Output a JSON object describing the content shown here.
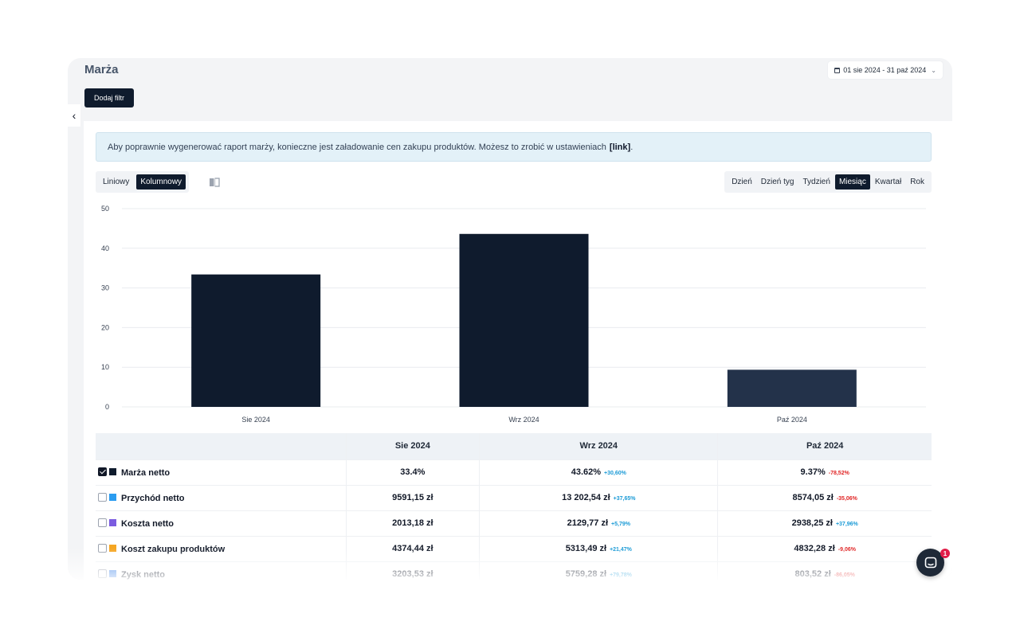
{
  "header": {
    "title": "Marża",
    "date_range": "01 sie 2024 - 31 paź 2024",
    "filter_button": "Dodaj filtr"
  },
  "notice": {
    "text": "Aby poprawnie wygenerować raport marży, konieczne jest załadowanie cen zakupu produktów. Możesz to zrobić w ustawieniach",
    "link": "[link]",
    "end": "."
  },
  "chart_toggle": [
    {
      "label": "Liniowy",
      "active": false
    },
    {
      "label": "Kolumnowy",
      "active": true
    }
  ],
  "period_toggle": [
    {
      "label": "Dzień",
      "active": false
    },
    {
      "label": "Dzień tyg",
      "active": false
    },
    {
      "label": "Tydzień",
      "active": false
    },
    {
      "label": "Miesiąc",
      "active": true
    },
    {
      "label": "Kwartał",
      "active": false
    },
    {
      "label": "Rok",
      "active": false
    }
  ],
  "chart_data": {
    "type": "bar",
    "categories": [
      "Sie 2024",
      "Wrz 2024",
      "Paź 2024"
    ],
    "values": [
      33.4,
      43.62,
      9.37
    ],
    "ylim": [
      0,
      50
    ],
    "yticks": [
      "0",
      "10",
      "20",
      "30",
      "40",
      "50"
    ],
    "grid": true,
    "colors": [
      "#0f1b2d",
      "#0f1b2d",
      "#23324a"
    ]
  },
  "table": {
    "columns": [
      "",
      "Sie 2024",
      "Wrz 2024",
      "Paź 2024"
    ],
    "rows": [
      {
        "name": "Marża netto",
        "checked": true,
        "color": "#0f1b2d",
        "cells": [
          {
            "value": "33.4%",
            "delta": ""
          },
          {
            "value": "43.62%",
            "delta": "+30,60%"
          },
          {
            "value": "9.37%",
            "delta": "-78,52%"
          }
        ]
      },
      {
        "name": "Przychód netto",
        "checked": false,
        "color": "#2b9cf0",
        "cells": [
          {
            "value": "9591,15 zł",
            "delta": ""
          },
          {
            "value": "13 202,54 zł",
            "delta": "+37,65%"
          },
          {
            "value": "8574,05 zł",
            "delta": "-35,06%"
          }
        ]
      },
      {
        "name": "Koszta netto",
        "checked": false,
        "color": "#7b5ce0",
        "cells": [
          {
            "value": "2013,18 zł",
            "delta": ""
          },
          {
            "value": "2129,77 zł",
            "delta": "+5,79%"
          },
          {
            "value": "2938,25 zł",
            "delta": "+37,96%"
          }
        ]
      },
      {
        "name": "Koszt zakupu produktów",
        "checked": false,
        "color": "#f5a623",
        "cells": [
          {
            "value": "4374,44 zł",
            "delta": ""
          },
          {
            "value": "5313,49 zł",
            "delta": "+21,47%"
          },
          {
            "value": "4832,28 zł",
            "delta": "-9,06%"
          }
        ]
      },
      {
        "name": "Zysk netto",
        "checked": false,
        "color": "#3b82e8",
        "cells": [
          {
            "value": "3203,53 zł",
            "delta": ""
          },
          {
            "value": "5759,28 zł",
            "delta": "+79,78%"
          },
          {
            "value": "803,52 zł",
            "delta": "-86,05%"
          }
        ]
      }
    ]
  },
  "colors": {
    "positive": "#1a9ad6",
    "negative": "#e02424",
    "primary": "#0f1b2d"
  },
  "chat": {
    "badge": "1",
    "icon": "chat-icon"
  }
}
